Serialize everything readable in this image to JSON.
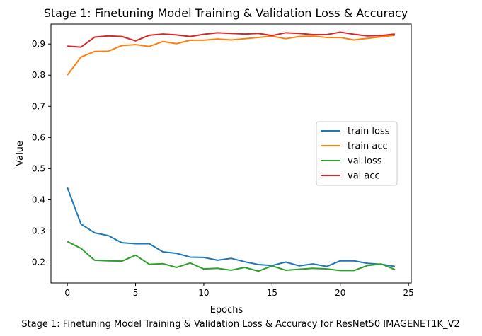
{
  "chart_data": {
    "type": "line",
    "title": "Stage 1: Finetuning Model Training & Validation Loss & Accuracy",
    "xlabel": "Epochs",
    "ylabel": "Value",
    "caption": "Stage 1: Finetuning Model Training & Validation Loss & Accuracy for ResNet50 IMAGENET1K_V2",
    "xlim": [
      -1.2,
      25.2
    ],
    "ylim": [
      0.133,
      0.964
    ],
    "xticks": [
      0,
      5,
      10,
      15,
      20,
      25
    ],
    "yticks": [
      0.2,
      0.3,
      0.4,
      0.5,
      0.6,
      0.7,
      0.8,
      0.9
    ],
    "grid": false,
    "legend_position": "center-right",
    "x": [
      0,
      1,
      2,
      3,
      4,
      5,
      6,
      7,
      8,
      9,
      10,
      11,
      12,
      13,
      14,
      15,
      16,
      17,
      18,
      19,
      20,
      21,
      22,
      23,
      24
    ],
    "series": [
      {
        "name": "train loss",
        "color": "#1f77b4",
        "values": [
          0.439,
          0.322,
          0.294,
          0.285,
          0.262,
          0.259,
          0.259,
          0.233,
          0.228,
          0.216,
          0.215,
          0.206,
          0.212,
          0.201,
          0.192,
          0.189,
          0.2,
          0.188,
          0.194,
          0.186,
          0.204,
          0.204,
          0.196,
          0.193,
          0.186
        ]
      },
      {
        "name": "train acc",
        "color": "#ff7f0e",
        "values": [
          0.8,
          0.858,
          0.876,
          0.877,
          0.895,
          0.898,
          0.892,
          0.908,
          0.901,
          0.912,
          0.912,
          0.916,
          0.913,
          0.917,
          0.921,
          0.925,
          0.917,
          0.924,
          0.925,
          0.921,
          0.921,
          0.913,
          0.918,
          0.923,
          0.928
        ]
      },
      {
        "name": "val loss",
        "color": "#2ca02c",
        "values": [
          0.266,
          0.244,
          0.206,
          0.204,
          0.203,
          0.222,
          0.193,
          0.195,
          0.183,
          0.197,
          0.178,
          0.18,
          0.174,
          0.183,
          0.171,
          0.188,
          0.174,
          0.177,
          0.18,
          0.178,
          0.173,
          0.173,
          0.189,
          0.194,
          0.176
        ]
      },
      {
        "name": "val acc",
        "color": "#d62728",
        "values": [
          0.893,
          0.89,
          0.922,
          0.926,
          0.924,
          0.91,
          0.928,
          0.932,
          0.929,
          0.924,
          0.931,
          0.936,
          0.934,
          0.932,
          0.934,
          0.927,
          0.936,
          0.934,
          0.93,
          0.93,
          0.938,
          0.931,
          0.926,
          0.927,
          0.932
        ]
      }
    ]
  }
}
